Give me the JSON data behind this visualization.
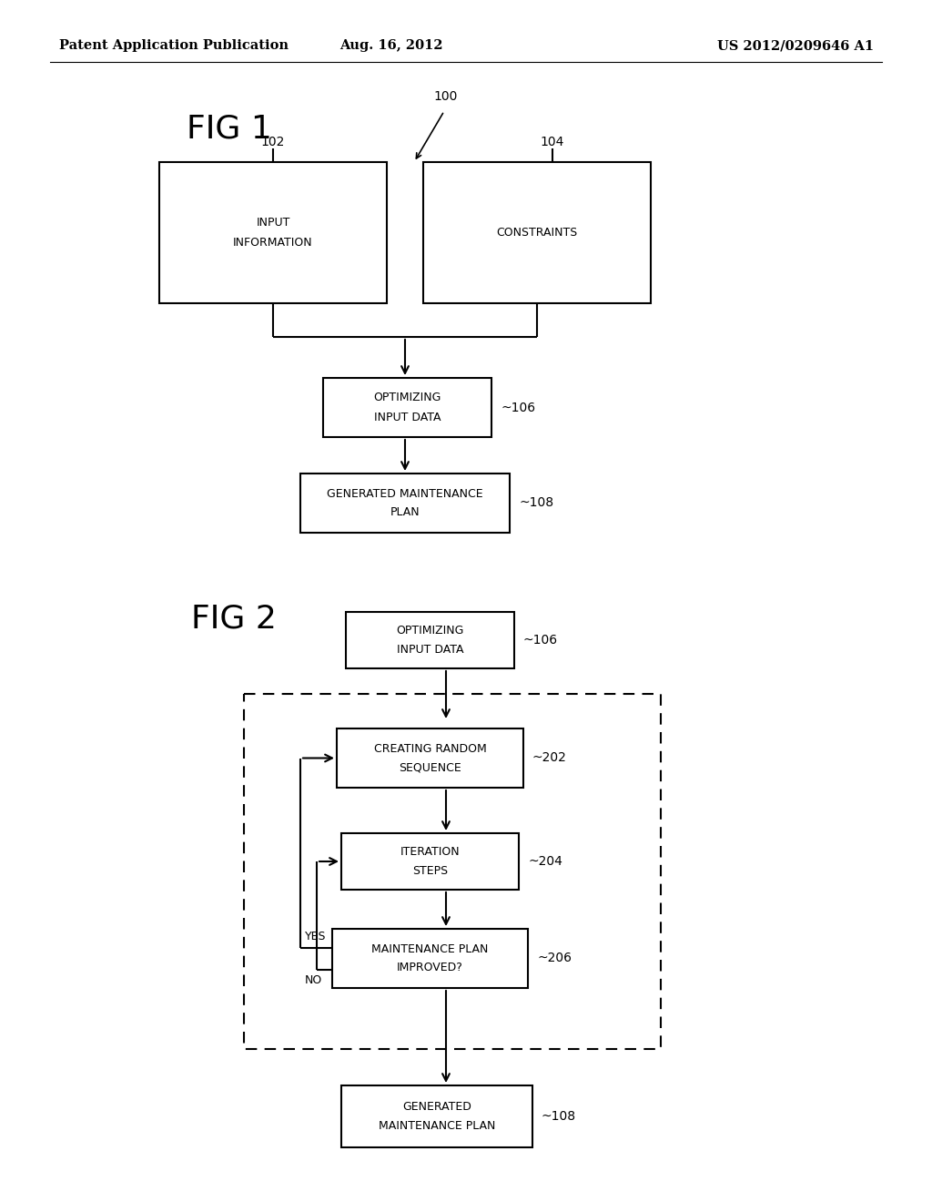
{
  "bg_color": "#ffffff",
  "header_left": "Patent Application Publication",
  "header_center": "Aug. 16, 2012",
  "header_right": "US 2012/0209646 A1",
  "fig1_label": "FIG 1",
  "fig2_label": "FIG 2",
  "label_100": "100",
  "label_102": "102",
  "label_104": "104",
  "label_106": "106",
  "label_108": "108",
  "label_202": "202",
  "label_204": "204",
  "label_206": "206",
  "box_input_info": "INPUT\nINFORMATION",
  "box_constraints": "CONSTRAINTS",
  "box_optimizing": "OPTIMIZING\nINPUT DATA",
  "box_gen_maint": "GENERATED MAINTENANCE\nPLAN",
  "box_optimizing2": "OPTIMIZING\nINPUT DATA",
  "box_creating": "CREATING RANDOM\nSEQUENCE",
  "box_iteration": "ITERATION\nSTEPS",
  "box_maint_improved": "MAINTENANCE PLAN\nIMPROVED?",
  "box_gen_maint2": "GENERATED\nMAINTENANCE PLAN",
  "yes_label": "YES",
  "no_label": "NO"
}
